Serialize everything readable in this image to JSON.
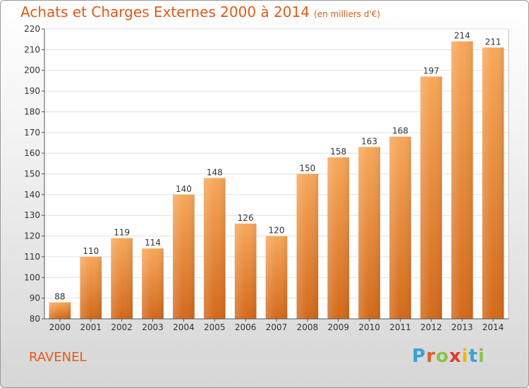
{
  "chart_data": {
    "type": "bar",
    "title": "Achats et Charges Externes 2000 à 2014",
    "subtitle": "(en milliers d'€)",
    "categories": [
      "2000",
      "2001",
      "2002",
      "2003",
      "2004",
      "2005",
      "2006",
      "2007",
      "2008",
      "2009",
      "2010",
      "2011",
      "2012",
      "2013",
      "2014"
    ],
    "values": [
      88,
      110,
      119,
      114,
      140,
      148,
      126,
      120,
      150,
      158,
      163,
      168,
      197,
      214,
      211
    ],
    "ylim": [
      80,
      220
    ],
    "yticks": [
      80,
      90,
      100,
      110,
      120,
      130,
      140,
      150,
      160,
      170,
      180,
      190,
      200,
      210,
      220
    ],
    "grid": true,
    "bar_color_top": "#f7a75a",
    "bar_color_bottom": "#d2691a",
    "xlabel": "",
    "ylabel": ""
  },
  "commune": "RAVENEL",
  "logo": {
    "letters": [
      "P",
      "r",
      "o",
      "x",
      "i",
      "t",
      "i"
    ],
    "colors": [
      "#3aa0d8",
      "#e35d2b",
      "#8bc34a",
      "#e53935",
      "#f2b705",
      "#3aa0d8",
      "#8bc34a"
    ]
  },
  "colors": {
    "title": "#e05a1a",
    "axis": "#555555",
    "grid": "#e0e0e0"
  }
}
